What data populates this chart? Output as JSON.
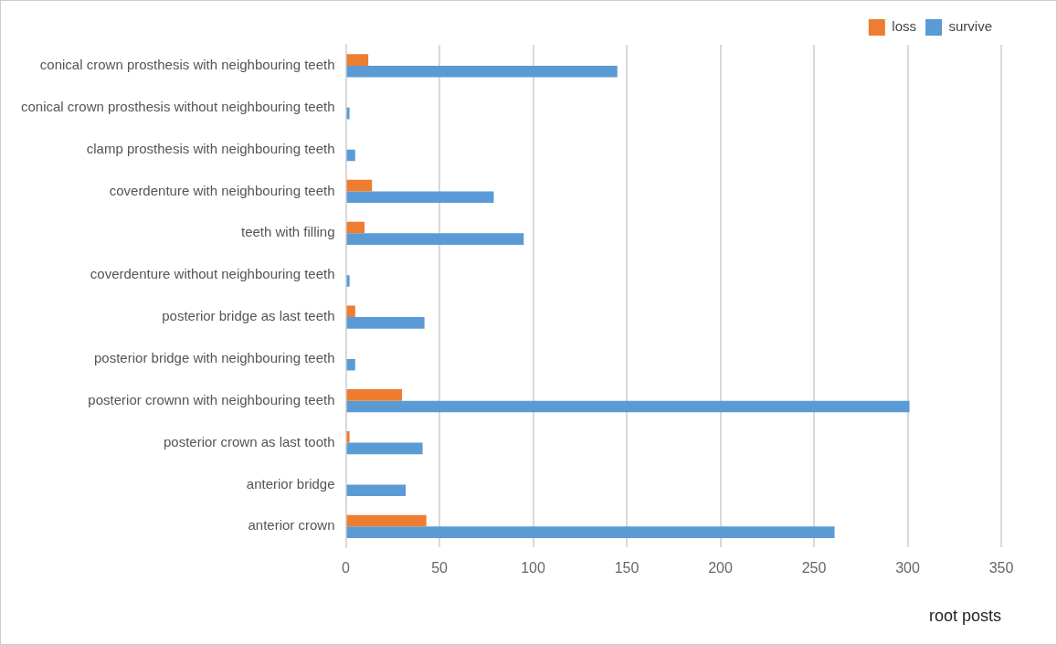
{
  "chart_data": {
    "type": "bar",
    "orientation": "horizontal",
    "categories": [
      "conical crown prosthesis with neighbouring teeth",
      "conical crown prosthesis without neighbouring teeth",
      "clamp prosthesis with neighbouring teeth",
      "coverdenture with neighbouring teeth",
      "teeth with filling",
      "coverdenture without neighbouring teeth",
      "posterior bridge as last teeth",
      "posterior bridge with neighbouring teeth",
      "posterior crownn with neighbouring teeth",
      "posterior crown as last tooth",
      "anterior bridge",
      "anterior crown"
    ],
    "series": [
      {
        "name": "loss",
        "color": "#ed7d31",
        "values": [
          12,
          0,
          0,
          14,
          10,
          0,
          5,
          0,
          30,
          2,
          0,
          43
        ]
      },
      {
        "name": "survive",
        "color": "#5b9bd5",
        "values": [
          145,
          2,
          5,
          79,
          95,
          2,
          42,
          5,
          301,
          41,
          32,
          261
        ]
      }
    ],
    "xlabel": "root posts",
    "xlim": [
      0,
      350
    ],
    "xticks": [
      0,
      50,
      100,
      150,
      200,
      250,
      300,
      350
    ],
    "grid": "x",
    "legend": "top right"
  }
}
